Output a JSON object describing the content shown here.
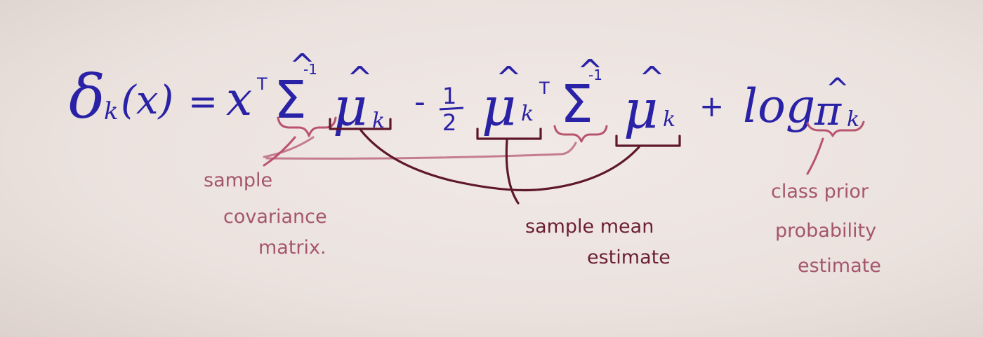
{
  "equation": {
    "delta": "δ",
    "delta_sub": "k",
    "delta_arg": "(x)",
    "equals": "=",
    "x": "x",
    "t1": "T",
    "sigma1": "Σ",
    "hat": "^",
    "inv1": "-1",
    "mu1": "μ",
    "mu1_sub": "k",
    "minus": "-",
    "half_num": "1",
    "half_den": "2",
    "mu2": "μ",
    "mu2_sub": "k",
    "t2": "T",
    "sigma2": "Σ",
    "inv2": "-1",
    "mu3": "μ",
    "mu3_sub": "k",
    "plus": "+",
    "log": "log",
    "pi": "π",
    "pi_sub": "k"
  },
  "annotations": {
    "covariance": [
      "sample",
      "covariance",
      "matrix."
    ],
    "mean": [
      "sample mean",
      "estimate"
    ],
    "prior": [
      "class prior",
      "probability",
      "estimate"
    ]
  },
  "colors": {
    "equation_ink": "#2a22a6",
    "covariance_ink": "#b8546c",
    "mean_ink": "#5e1828",
    "prior_ink": "#a4566c",
    "paper": "#ece3df"
  }
}
